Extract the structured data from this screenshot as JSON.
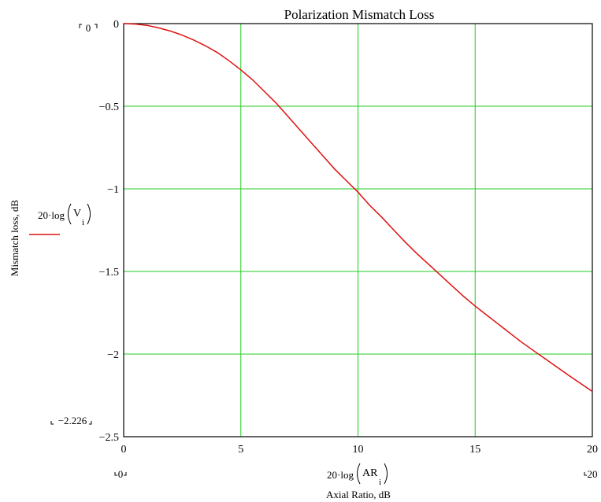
{
  "chart_data": {
    "type": "line",
    "title": "Polarization Mismatch Loss",
    "xlabel": "Axial Ratio, dB",
    "ylabel": "Mismatch loss, dB",
    "x_expression": {
      "prefix": "20·log",
      "var": "AR",
      "sub": "i"
    },
    "legend": {
      "prefix": "20·log",
      "var": "V",
      "sub": "i",
      "placement": "left"
    },
    "xlim": [
      0,
      20
    ],
    "ylim": [
      -2.5,
      0
    ],
    "xticks": [
      "0",
      "5",
      "10",
      "15",
      "20"
    ],
    "yticks": [
      "0",
      "−0.5",
      "−1",
      "−1.5",
      "−2",
      "−2.5"
    ],
    "x_range_labels": {
      "min": "0",
      "max": "20"
    },
    "y_range_labels": {
      "max": "0",
      "min": "−2.226"
    },
    "grid": true,
    "colors": {
      "line": "#e01010",
      "grid": "#22cc22",
      "axes": "#000000"
    },
    "series": [
      {
        "x": [
          0,
          0.5,
          1,
          1.5,
          2,
          2.5,
          3,
          3.5,
          4,
          4.5,
          5,
          5.5,
          6,
          6.5,
          7,
          7.5,
          8,
          8.5,
          9,
          9.5,
          10,
          10.5,
          11,
          11.5,
          12,
          12.5,
          13,
          13.5,
          14,
          14.5,
          15,
          15.5,
          16,
          16.5,
          17,
          17.5,
          18,
          18.5,
          19,
          19.5,
          20
        ],
        "y": [
          0,
          -0.003,
          -0.011,
          -0.026,
          -0.045,
          -0.07,
          -0.1,
          -0.135,
          -0.175,
          -0.225,
          -0.28,
          -0.34,
          -0.41,
          -0.48,
          -0.56,
          -0.64,
          -0.72,
          -0.8,
          -0.88,
          -0.95,
          -1.02,
          -1.1,
          -1.17,
          -1.245,
          -1.32,
          -1.39,
          -1.455,
          -1.52,
          -1.585,
          -1.65,
          -1.71,
          -1.765,
          -1.82,
          -1.875,
          -1.93,
          -1.98,
          -2.03,
          -2.08,
          -2.13,
          -2.178,
          -2.226
        ]
      }
    ]
  }
}
